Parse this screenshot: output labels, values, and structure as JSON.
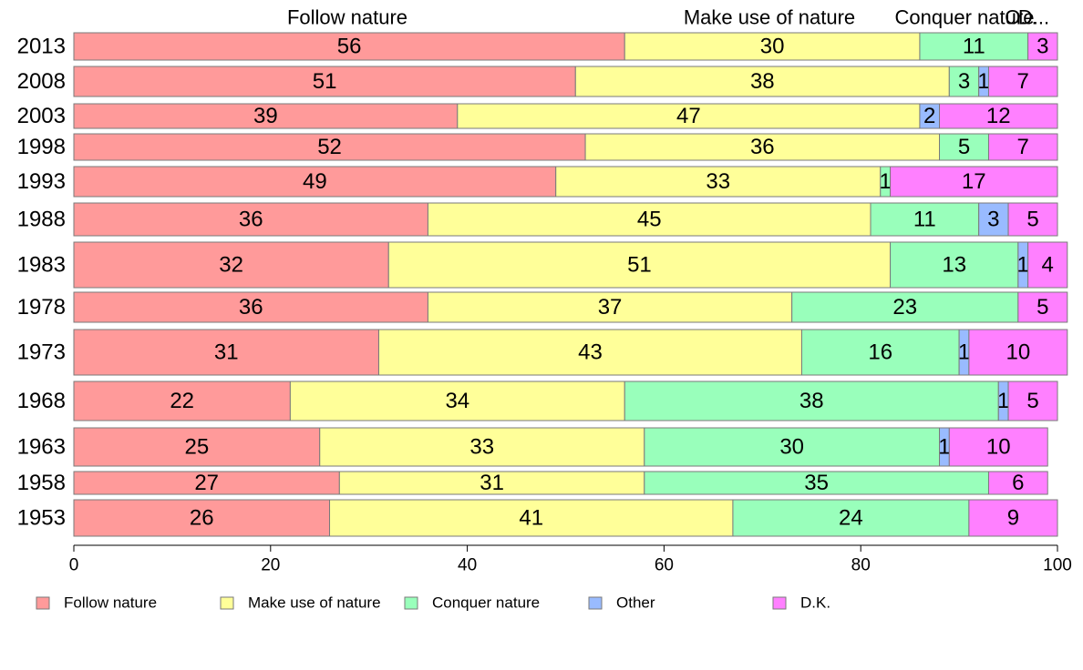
{
  "chart_data": {
    "type": "bar",
    "orientation": "horizontal",
    "stacked": true,
    "categories": [
      "2013",
      "2008",
      "2003",
      "1998",
      "1993",
      "1988",
      "1983",
      "1978",
      "1973",
      "1968",
      "1963",
      "1958",
      "1953"
    ],
    "series": [
      {
        "name": "Follow nature",
        "color": "#FF9A9A",
        "values": [
          56,
          51,
          39,
          52,
          49,
          36,
          32,
          36,
          31,
          22,
          25,
          27,
          26
        ]
      },
      {
        "name": "Make use of nature",
        "color": "#FFFF99",
        "values": [
          30,
          38,
          47,
          36,
          33,
          45,
          51,
          37,
          43,
          34,
          33,
          31,
          41
        ]
      },
      {
        "name": "Conquer nature",
        "color": "#99FFBB",
        "values": [
          11,
          3,
          0,
          5,
          1,
          11,
          13,
          23,
          16,
          38,
          30,
          35,
          24
        ]
      },
      {
        "name": "Other",
        "color": "#99BBFF",
        "values": [
          0,
          1,
          2,
          0,
          0,
          3,
          1,
          0,
          1,
          1,
          1,
          0,
          0
        ]
      },
      {
        "name": "D.K.",
        "color": "#FF80FF",
        "values": [
          3,
          7,
          12,
          7,
          17,
          5,
          4,
          5,
          10,
          5,
          10,
          6,
          9
        ]
      }
    ],
    "top_labels": [
      "Follow nature",
      "Make use of nature",
      "Conquer nature",
      "O...",
      "D..."
    ],
    "x_ticks": [
      "0",
      "20",
      "40",
      "60",
      "80",
      "100"
    ],
    "xlim": [
      0,
      100
    ],
    "grid": false,
    "legend": {
      "placement": "bottom",
      "entries": [
        "Follow nature",
        "Make use of nature",
        "Conquer nature",
        "Other",
        "D.K."
      ]
    }
  }
}
